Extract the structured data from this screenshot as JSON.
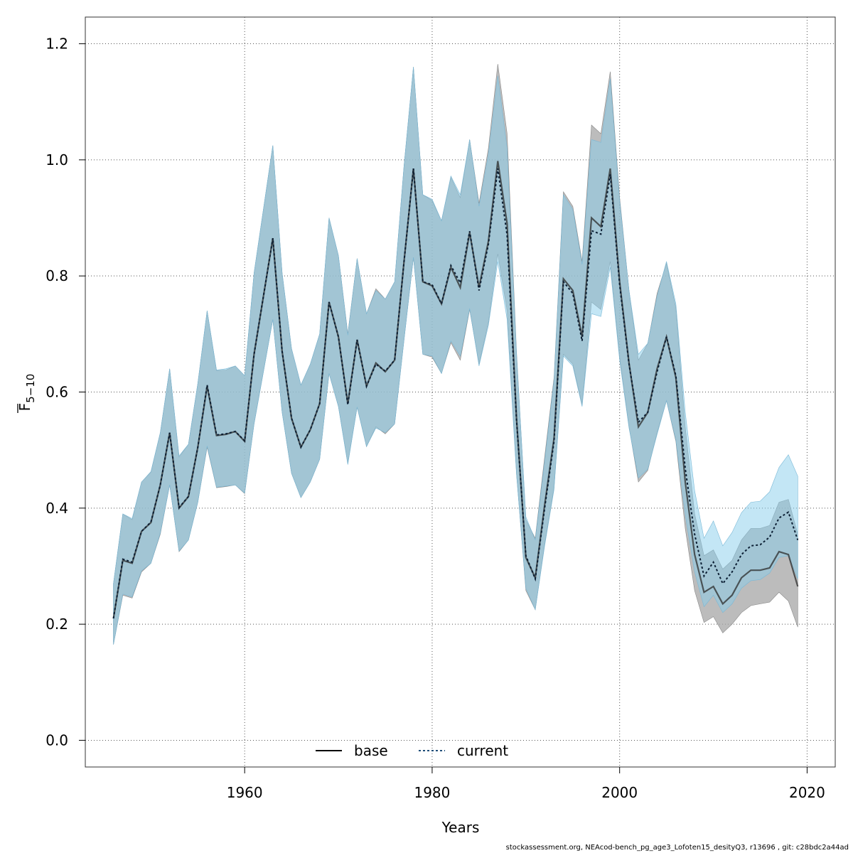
{
  "chart_data": {
    "type": "line",
    "xlabel": "Years",
    "ylabel": "F5-10",
    "ylabel_main": "F",
    "ylabel_sub": "5−10",
    "xlim": [
      1943,
      2023
    ],
    "ylim": [
      -0.046,
      1.246
    ],
    "xticks": [
      1960,
      1980,
      2000,
      2020
    ],
    "yticks": [
      0.0,
      0.2,
      0.4,
      0.6,
      0.8,
      1.0,
      1.2
    ],
    "ytick_labels": [
      "0.0",
      "0.2",
      "0.4",
      "0.6",
      "0.8",
      "1.0",
      "1.2"
    ],
    "grid": true,
    "legend": {
      "placement": "bottom-center"
    },
    "colors": {
      "base_band": "#a6a6a6",
      "current_band": "#87ceeb",
      "overlap_band": "#a0c4d6",
      "base_line": "#000000",
      "current_line": "#1f4e79"
    },
    "x": [
      1946,
      1947,
      1948,
      1949,
      1950,
      1951,
      1952,
      1953,
      1954,
      1955,
      1956,
      1957,
      1958,
      1959,
      1960,
      1961,
      1962,
      1963,
      1964,
      1965,
      1966,
      1967,
      1968,
      1969,
      1970,
      1971,
      1972,
      1973,
      1974,
      1975,
      1976,
      1977,
      1978,
      1979,
      1980,
      1981,
      1982,
      1983,
      1984,
      1985,
      1986,
      1987,
      1988,
      1989,
      1990,
      1991,
      1992,
      1993,
      1994,
      1995,
      1996,
      1997,
      1998,
      1999,
      2000,
      2001,
      2002,
      2003,
      2004,
      2005,
      2006,
      2007,
      2008,
      2009,
      2010,
      2011,
      2012,
      2013,
      2014,
      2015,
      2016,
      2017,
      2018,
      2019
    ],
    "series": [
      {
        "name": "base",
        "values": [
          0.21,
          0.31,
          0.305,
          0.36,
          0.375,
          0.44,
          0.53,
          0.4,
          0.42,
          0.505,
          0.61,
          0.525,
          0.527,
          0.532,
          0.515,
          0.665,
          0.765,
          0.865,
          0.67,
          0.555,
          0.505,
          0.535,
          0.58,
          0.755,
          0.695,
          0.58,
          0.69,
          0.61,
          0.65,
          0.635,
          0.655,
          0.825,
          0.985,
          0.79,
          0.783,
          0.752,
          0.815,
          0.78,
          0.875,
          0.78,
          0.86,
          0.998,
          0.89,
          0.555,
          0.315,
          0.28,
          0.405,
          0.52,
          0.795,
          0.775,
          0.695,
          0.9,
          0.885,
          0.985,
          0.79,
          0.65,
          0.54,
          0.565,
          0.64,
          0.695,
          0.625,
          0.445,
          0.32,
          0.255,
          0.265,
          0.235,
          0.25,
          0.28,
          0.293,
          0.293,
          0.297,
          0.325,
          0.32,
          0.265
        ],
        "lower": [
          0.165,
          0.25,
          0.245,
          0.29,
          0.305,
          0.355,
          0.44,
          0.325,
          0.345,
          0.41,
          0.505,
          0.435,
          0.437,
          0.44,
          0.425,
          0.545,
          0.635,
          0.725,
          0.565,
          0.46,
          0.418,
          0.445,
          0.484,
          0.632,
          0.575,
          0.477,
          0.574,
          0.506,
          0.54,
          0.528,
          0.545,
          0.69,
          0.832,
          0.665,
          0.66,
          0.632,
          0.685,
          0.655,
          0.742,
          0.648,
          0.72,
          0.838,
          0.74,
          0.46,
          0.258,
          0.225,
          0.338,
          0.435,
          0.665,
          0.648,
          0.578,
          0.755,
          0.742,
          0.825,
          0.66,
          0.54,
          0.445,
          0.465,
          0.53,
          0.585,
          0.515,
          0.365,
          0.258,
          0.203,
          0.213,
          0.185,
          0.2,
          0.22,
          0.232,
          0.235,
          0.238,
          0.255,
          0.24,
          0.195
        ],
        "upper": [
          0.27,
          0.39,
          0.38,
          0.445,
          0.462,
          0.53,
          0.64,
          0.488,
          0.51,
          0.615,
          0.74,
          0.637,
          0.638,
          0.645,
          0.628,
          0.805,
          0.915,
          1.025,
          0.805,
          0.675,
          0.612,
          0.648,
          0.7,
          0.9,
          0.835,
          0.7,
          0.83,
          0.735,
          0.778,
          0.76,
          0.79,
          0.99,
          1.16,
          0.94,
          0.93,
          0.895,
          0.97,
          0.935,
          1.035,
          0.925,
          1.02,
          1.165,
          1.045,
          0.67,
          0.38,
          0.348,
          0.488,
          0.625,
          0.945,
          0.92,
          0.825,
          1.06,
          1.045,
          1.152,
          0.935,
          0.775,
          0.655,
          0.684,
          0.77,
          0.822,
          0.745,
          0.54,
          0.39,
          0.318,
          0.328,
          0.295,
          0.31,
          0.345,
          0.365,
          0.365,
          0.37,
          0.41,
          0.415,
          0.355
        ]
      },
      {
        "name": "current",
        "values": [
          0.21,
          0.312,
          0.307,
          0.36,
          0.376,
          0.44,
          0.53,
          0.401,
          0.42,
          0.505,
          0.612,
          0.526,
          0.528,
          0.532,
          0.516,
          0.665,
          0.765,
          0.865,
          0.67,
          0.555,
          0.505,
          0.535,
          0.58,
          0.755,
          0.695,
          0.578,
          0.69,
          0.61,
          0.648,
          0.636,
          0.655,
          0.825,
          0.985,
          0.79,
          0.785,
          0.752,
          0.818,
          0.788,
          0.877,
          0.775,
          0.855,
          0.985,
          0.87,
          0.552,
          0.318,
          0.278,
          0.4,
          0.515,
          0.79,
          0.77,
          0.688,
          0.878,
          0.872,
          0.975,
          0.785,
          0.648,
          0.548,
          0.565,
          0.635,
          0.695,
          0.628,
          0.468,
          0.355,
          0.283,
          0.307,
          0.27,
          0.29,
          0.32,
          0.335,
          0.337,
          0.35,
          0.383,
          0.393,
          0.345
        ],
        "lower": [
          0.165,
          0.252,
          0.247,
          0.292,
          0.305,
          0.357,
          0.44,
          0.326,
          0.345,
          0.41,
          0.507,
          0.436,
          0.438,
          0.44,
          0.426,
          0.545,
          0.635,
          0.725,
          0.565,
          0.46,
          0.418,
          0.445,
          0.484,
          0.632,
          0.575,
          0.475,
          0.574,
          0.506,
          0.538,
          0.53,
          0.545,
          0.69,
          0.832,
          0.665,
          0.662,
          0.632,
          0.688,
          0.662,
          0.744,
          0.645,
          0.715,
          0.825,
          0.725,
          0.458,
          0.262,
          0.225,
          0.335,
          0.432,
          0.662,
          0.645,
          0.575,
          0.735,
          0.73,
          0.815,
          0.655,
          0.538,
          0.452,
          0.467,
          0.527,
          0.585,
          0.518,
          0.388,
          0.29,
          0.23,
          0.25,
          0.22,
          0.235,
          0.262,
          0.275,
          0.277,
          0.288,
          0.315,
          0.318,
          0.278
        ],
        "upper": [
          0.27,
          0.39,
          0.382,
          0.445,
          0.463,
          0.53,
          0.64,
          0.49,
          0.51,
          0.615,
          0.74,
          0.638,
          0.64,
          0.645,
          0.628,
          0.805,
          0.915,
          1.025,
          0.805,
          0.675,
          0.612,
          0.648,
          0.7,
          0.9,
          0.835,
          0.698,
          0.83,
          0.735,
          0.775,
          0.76,
          0.79,
          0.99,
          1.16,
          0.94,
          0.932,
          0.895,
          0.972,
          0.94,
          1.035,
          0.92,
          1.01,
          1.145,
          1.02,
          0.665,
          0.385,
          0.345,
          0.48,
          0.62,
          0.94,
          0.915,
          0.82,
          1.035,
          1.03,
          1.14,
          0.93,
          0.775,
          0.665,
          0.684,
          0.765,
          0.825,
          0.752,
          0.565,
          0.43,
          0.348,
          0.378,
          0.335,
          0.358,
          0.392,
          0.41,
          0.412,
          0.428,
          0.47,
          0.492,
          0.455
        ]
      }
    ]
  },
  "footer": "stockassessment.org, NEAcod-bench_pg_age3_Lofoten15_desityQ3, r13696 , git: c28bdc2a44ad"
}
